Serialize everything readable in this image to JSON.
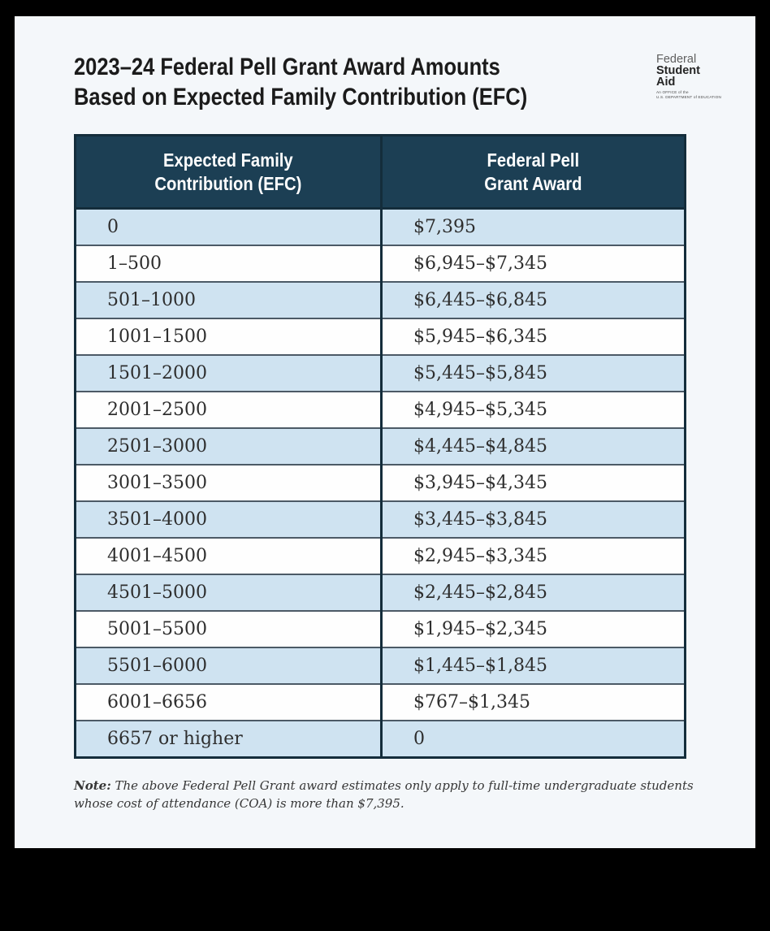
{
  "page": {
    "title_line1": "2023–24 Federal Pell Grant Award Amounts",
    "title_line2": "Based on Expected Family Contribution (EFC)"
  },
  "logo": {
    "line1": "Federal",
    "line2": "Student",
    "line3": "Aid",
    "sub_line1": "An OFFICE of the",
    "sub_line2": "U.S. DEPARTMENT of EDUCATION"
  },
  "table": {
    "col1_header_line1": "Expected Family",
    "col1_header_line2": "Contribution (EFC)",
    "col2_header_line1": "Federal Pell",
    "col2_header_line2": "Grant Award",
    "rows": [
      {
        "efc": "0",
        "award": "$7,395"
      },
      {
        "efc": "1–500",
        "award": "$6,945–$7,345"
      },
      {
        "efc": "501–1000",
        "award": "$6,445–$6,845"
      },
      {
        "efc": "1001–1500",
        "award": "$5,945–$6,345"
      },
      {
        "efc": "1501–2000",
        "award": "$5,445–$5,845"
      },
      {
        "efc": "2001–2500",
        "award": "$4,945–$5,345"
      },
      {
        "efc": "2501–3000",
        "award": "$4,445–$4,845"
      },
      {
        "efc": "3001–3500",
        "award": "$3,945–$4,345"
      },
      {
        "efc": "3501–4000",
        "award": "$3,445–$3,845"
      },
      {
        "efc": "4001–4500",
        "award": "$2,945–$3,345"
      },
      {
        "efc": "4501–5000",
        "award": "$2,445–$2,845"
      },
      {
        "efc": "5001–5500",
        "award": "$1,945–$2,345"
      },
      {
        "efc": "5501–6000",
        "award": "$1,445–$1,845"
      },
      {
        "efc": "6001–6656",
        "award": "$767–$1,345"
      },
      {
        "efc": "6657 or higher",
        "award": "0"
      }
    ]
  },
  "note": {
    "label": "Note:",
    "text": " The above Federal Pell Grant award estimates only apply to full-time undergraduate students whose cost of attendance (COA) is more than $7,395."
  },
  "colors": {
    "page_background": "#f4f7fa",
    "outer_background": "#000000",
    "table_header_background": "#1c3f54",
    "table_header_text": "#ffffff",
    "row_stripe_blue": "#cfe3f1",
    "row_stripe_white": "#fefefe",
    "table_border": "#142d3b",
    "body_text": "#2e2e2e"
  }
}
